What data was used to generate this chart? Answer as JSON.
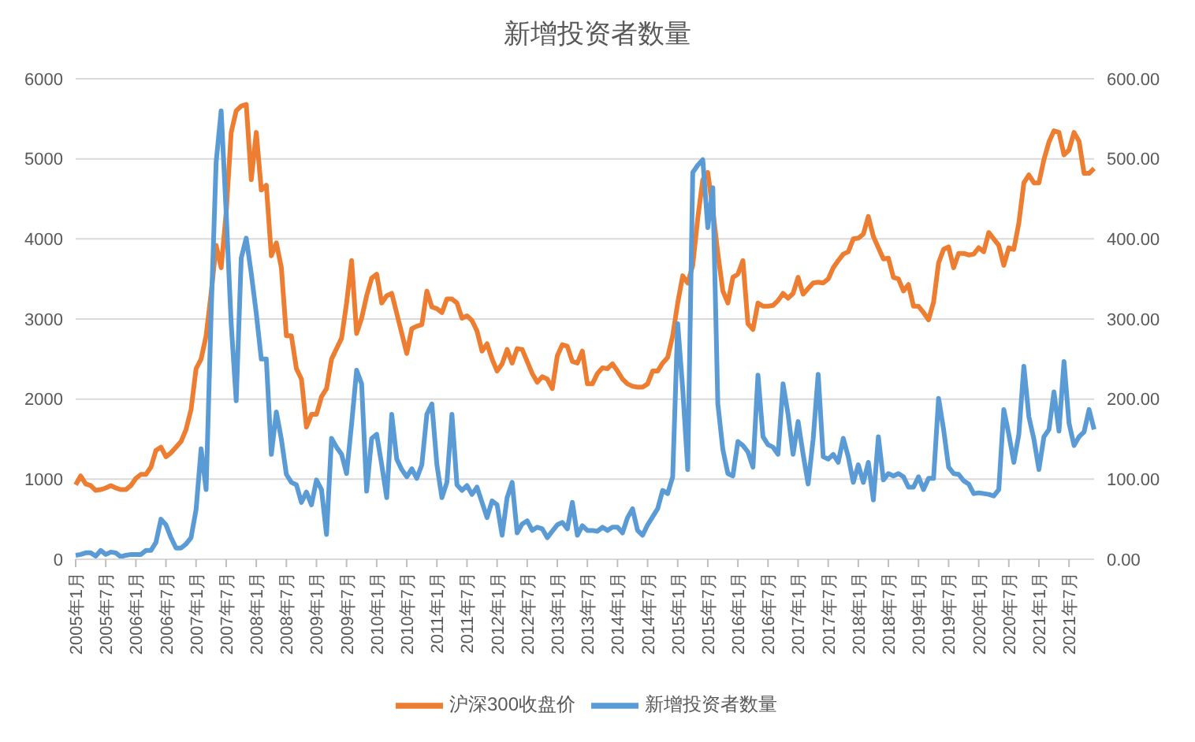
{
  "chart_data": {
    "type": "line",
    "title": "新增投资者数量",
    "categories": [
      "2005年1月",
      null,
      null,
      null,
      null,
      null,
      "2005年7月",
      null,
      null,
      null,
      null,
      null,
      "2006年1月",
      null,
      null,
      null,
      null,
      null,
      "2006年7月",
      null,
      null,
      null,
      null,
      null,
      "2007年1月",
      null,
      null,
      null,
      null,
      null,
      "2007年7月",
      null,
      null,
      null,
      null,
      null,
      "2008年1月",
      null,
      null,
      null,
      null,
      null,
      "2008年7月",
      null,
      null,
      null,
      null,
      null,
      "2009年1月",
      null,
      null,
      null,
      null,
      null,
      "2009年7月",
      null,
      null,
      null,
      null,
      null,
      "2010年1月",
      null,
      null,
      null,
      null,
      null,
      "2010年7月",
      null,
      null,
      null,
      null,
      null,
      "2011年1月",
      null,
      null,
      null,
      null,
      null,
      "2011年7月",
      null,
      null,
      null,
      null,
      null,
      "2012年1月",
      null,
      null,
      null,
      null,
      null,
      "2012年7月",
      null,
      null,
      null,
      null,
      null,
      "2013年1月",
      null,
      null,
      null,
      null,
      null,
      "2013年7月",
      null,
      null,
      null,
      null,
      null,
      "2014年1月",
      null,
      null,
      null,
      null,
      null,
      "2014年7月",
      null,
      null,
      null,
      null,
      null,
      "2015年1月",
      null,
      null,
      null,
      null,
      null,
      "2015年7月",
      null,
      null,
      null,
      null,
      null,
      "2016年1月",
      null,
      null,
      null,
      null,
      null,
      "2016年7月",
      null,
      null,
      null,
      null,
      null,
      "2017年1月",
      null,
      null,
      null,
      null,
      null,
      "2017年7月",
      null,
      null,
      null,
      null,
      null,
      "2018年1月",
      null,
      null,
      null,
      null,
      null,
      "2018年7月",
      null,
      null,
      null,
      null,
      null,
      "2019年1月",
      null,
      null,
      null,
      null,
      null,
      "2019年7月",
      null,
      null,
      null,
      null,
      null,
      "2020年1月",
      null,
      null,
      null,
      null,
      null,
      "2020年7月",
      null,
      null,
      null,
      null,
      null,
      "2021年1月",
      null,
      null,
      null,
      null,
      null,
      "2021年7月",
      null,
      null,
      null,
      null,
      null
    ],
    "series": [
      {
        "name": "沪深300收盘价",
        "color": "#ed7d31",
        "values": [
          930,
          1040,
          940,
          920,
          860,
          870,
          890,
          920,
          890,
          870,
          870,
          920,
          1010,
          1060,
          1060,
          1150,
          1360,
          1400,
          1280,
          1330,
          1400,
          1470,
          1620,
          1870,
          2380,
          2500,
          2790,
          3320,
          3920,
          3640,
          4330,
          5330,
          5600,
          5660,
          5680,
          4740,
          5330,
          4610,
          4670,
          3790,
          3950,
          3640,
          2790,
          2790,
          2380,
          2250,
          1650,
          1810,
          1810,
          2030,
          2130,
          2500,
          2630,
          2760,
          3200,
          3730,
          2820,
          3010,
          3290,
          3510,
          3560,
          3200,
          3290,
          3320,
          3070,
          2820,
          2570,
          2880,
          2910,
          2930,
          3350,
          3150,
          3130,
          3080,
          3250,
          3250,
          3200,
          3010,
          3040,
          2980,
          2850,
          2600,
          2690,
          2500,
          2350,
          2440,
          2620,
          2450,
          2630,
          2620,
          2470,
          2320,
          2210,
          2280,
          2250,
          2130,
          2540,
          2680,
          2660,
          2470,
          2450,
          2600,
          2190,
          2190,
          2320,
          2390,
          2380,
          2440,
          2350,
          2250,
          2190,
          2160,
          2150,
          2150,
          2190,
          2350,
          2350,
          2450,
          2520,
          2790,
          3200,
          3540,
          3450,
          3670,
          4260,
          4740,
          4830,
          4360,
          3820,
          3350,
          3200,
          3520,
          3560,
          3730,
          2940,
          2870,
          3200,
          3160,
          3160,
          3170,
          3230,
          3320,
          3260,
          3320,
          3520,
          3310,
          3380,
          3450,
          3460,
          3450,
          3500,
          3640,
          3730,
          3810,
          3840,
          4000,
          4010,
          4060,
          4280,
          4030,
          3890,
          3750,
          3760,
          3520,
          3500,
          3350,
          3430,
          3160,
          3160,
          3080,
          2990,
          3210,
          3700,
          3870,
          3900,
          3640,
          3820,
          3820,
          3800,
          3810,
          3890,
          3840,
          4080,
          4000,
          3920,
          3670,
          3890,
          3870,
          4200,
          4700,
          4800,
          4700,
          4700,
          4990,
          5210,
          5350,
          5330,
          5050,
          5110,
          5330,
          5220,
          4820,
          4820,
          4880
        ]
      },
      {
        "name": "新增投资者数量",
        "color": "#5b9bd5",
        "axis": "y2",
        "values": [
          5,
          6,
          8,
          8,
          4,
          11,
          6,
          9,
          8,
          3,
          5,
          6,
          6,
          6,
          11,
          11,
          21,
          50,
          43,
          27,
          14,
          14,
          19,
          27,
          62,
          138,
          87,
          307,
          496,
          560,
          433,
          294,
          198,
          376,
          401,
          357,
          307,
          250,
          250,
          131,
          184,
          150,
          106,
          96,
          93,
          71,
          84,
          68,
          99,
          87,
          31,
          151,
          140,
          131,
          107,
          169,
          236,
          219,
          85,
          151,
          156,
          118,
          77,
          181,
          125,
          112,
          103,
          113,
          101,
          118,
          181,
          194,
          118,
          77,
          96,
          181,
          93,
          86,
          92,
          81,
          90,
          71,
          52,
          73,
          68,
          30,
          77,
          96,
          33,
          44,
          48,
          36,
          40,
          38,
          27,
          35,
          43,
          46,
          38,
          71,
          30,
          42,
          36,
          36,
          35,
          40,
          36,
          40,
          40,
          33,
          52,
          63,
          36,
          30,
          43,
          53,
          63,
          86,
          82,
          103,
          294,
          213,
          112,
          483,
          492,
          499,
          414,
          464,
          194,
          137,
          107,
          104,
          147,
          142,
          134,
          115,
          230,
          153,
          143,
          140,
          131,
          219,
          181,
          131,
          172,
          131,
          94,
          150,
          231,
          128,
          125,
          131,
          121,
          151,
          128,
          96,
          118,
          96,
          121,
          74,
          153,
          99,
          107,
          104,
          107,
          103,
          90,
          90,
          103,
          87,
          101,
          101,
          201,
          162,
          115,
          107,
          106,
          98,
          94,
          82,
          83,
          82,
          81,
          79,
          87,
          187,
          156,
          121,
          156,
          241,
          178,
          150,
          112,
          153,
          162,
          209,
          160,
          247,
          170,
          142,
          153,
          159,
          187,
          162
        ]
      }
    ],
    "ylim": [
      0,
      6000
    ],
    "yticks": [
      0,
      1000,
      2000,
      3000,
      4000,
      5000,
      6000
    ],
    "y2lim": [
      0,
      600
    ],
    "y2ticks": [
      {
        "value": 0,
        "label": "0.00"
      },
      {
        "value": 100,
        "label": "100.00"
      },
      {
        "value": 200,
        "label": "200.00"
      },
      {
        "value": 300,
        "label": "300.00"
      },
      {
        "value": 400,
        "label": "400.00"
      },
      {
        "value": 500,
        "label": "500.00"
      },
      {
        "value": 600,
        "label": "600.00"
      }
    ],
    "grid": "y",
    "legend": "bottom",
    "marker": "none",
    "line_style": "solid"
  }
}
